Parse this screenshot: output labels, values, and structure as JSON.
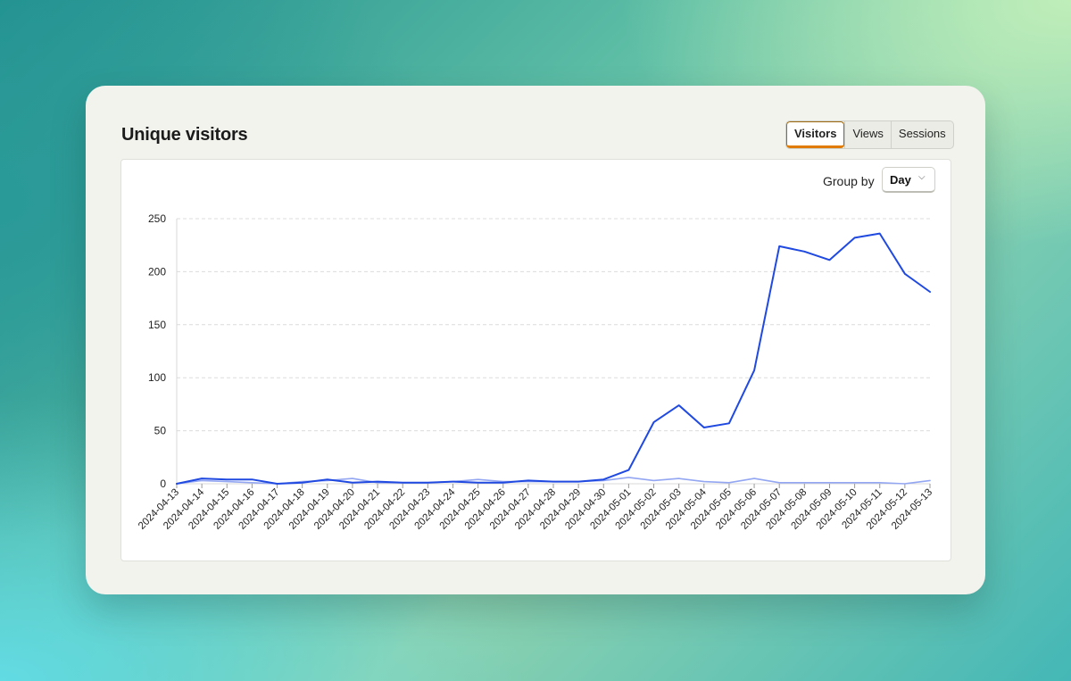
{
  "card": {
    "title": "Unique visitors",
    "tabs": [
      "Visitors",
      "Views",
      "Sessions"
    ],
    "active_tab": "Visitors",
    "group_by_label": "Group by",
    "group_by_value": "Day"
  },
  "colors": {
    "series_primary": "#1f49e0",
    "series_secondary": "#93a6f2",
    "tab_accent": "#e07b00"
  },
  "icons": {
    "dropdown": "chevron-down-icon"
  },
  "chart_data": {
    "type": "line",
    "x": [
      "2024-04-13",
      "2024-04-14",
      "2024-04-15",
      "2024-04-16",
      "2024-04-17",
      "2024-04-18",
      "2024-04-19",
      "2024-04-20",
      "2024-04-21",
      "2024-04-22",
      "2024-04-23",
      "2024-04-24",
      "2024-04-25",
      "2024-04-26",
      "2024-04-27",
      "2024-04-28",
      "2024-04-29",
      "2024-04-30",
      "2024-05-01",
      "2024-05-02",
      "2024-05-03",
      "2024-05-04",
      "2024-05-05",
      "2024-05-06",
      "2024-05-07",
      "2024-05-08",
      "2024-05-09",
      "2024-05-10",
      "2024-05-11",
      "2024-05-12",
      "2024-05-13"
    ],
    "series": [
      {
        "values": [
          0,
          5,
          4,
          4,
          0,
          1,
          4,
          1,
          2,
          1,
          1,
          2,
          1,
          1,
          3,
          2,
          2,
          4,
          13,
          58,
          74,
          53,
          57,
          107,
          224,
          219,
          211,
          232,
          236,
          198,
          181
        ]
      },
      {
        "values": [
          0,
          3,
          2,
          1,
          0,
          2,
          3,
          5,
          1,
          1,
          1,
          2,
          4,
          2,
          2,
          2,
          2,
          3,
          6,
          3,
          5,
          2,
          1,
          5,
          1,
          1,
          1,
          1,
          1,
          0,
          3
        ]
      }
    ],
    "ylim": [
      0,
      250
    ],
    "yticks": [
      0,
      50,
      100,
      150,
      200,
      250
    ],
    "grid": true,
    "legend": "none"
  }
}
